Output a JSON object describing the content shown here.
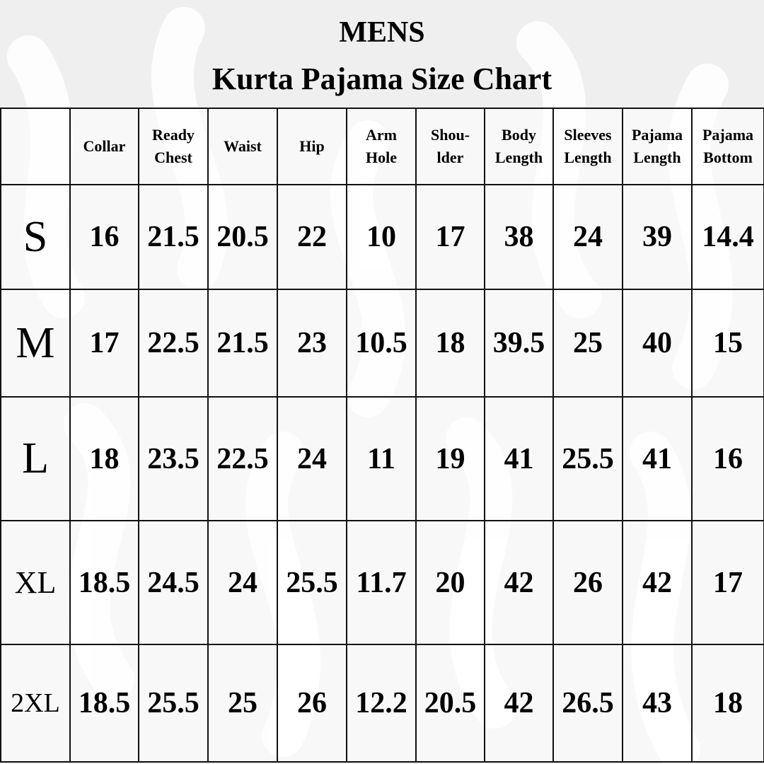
{
  "title": "MENS",
  "subtitle": "Kurta Pajama Size Chart",
  "columns": [
    "",
    "Collar",
    "Ready Chest",
    "Waist",
    "Hip",
    "Arm Hole",
    "Shou- lder",
    "Body Length",
    "Sleeves Length",
    "Pajama Length",
    "Pajama Bottom"
  ],
  "rows": [
    {
      "size": "S",
      "values": [
        "16",
        "21.5",
        "20.5",
        "22",
        "10",
        "17",
        "38",
        "24",
        "39",
        "14.4"
      ]
    },
    {
      "size": "M",
      "values": [
        "17",
        "22.5",
        "21.5",
        "23",
        "10.5",
        "18",
        "39.5",
        "25",
        "40",
        "15"
      ]
    },
    {
      "size": "L",
      "values": [
        "18",
        "23.5",
        "22.5",
        "24",
        "11",
        "19",
        "41",
        "25.5",
        "41",
        "16"
      ]
    },
    {
      "size": "XL",
      "values": [
        "18.5",
        "24.5",
        "24",
        "25.5",
        "11.7",
        "20",
        "42",
        "26",
        "42",
        "17"
      ]
    },
    {
      "size": "2XL",
      "values": [
        "18.5",
        "25.5",
        "25",
        "26",
        "12.2",
        "20.5",
        "42",
        "26.5",
        "43",
        "18"
      ]
    }
  ],
  "colors": {
    "background": "#efefef",
    "pattern": "#ffffff",
    "text": "#000000"
  }
}
